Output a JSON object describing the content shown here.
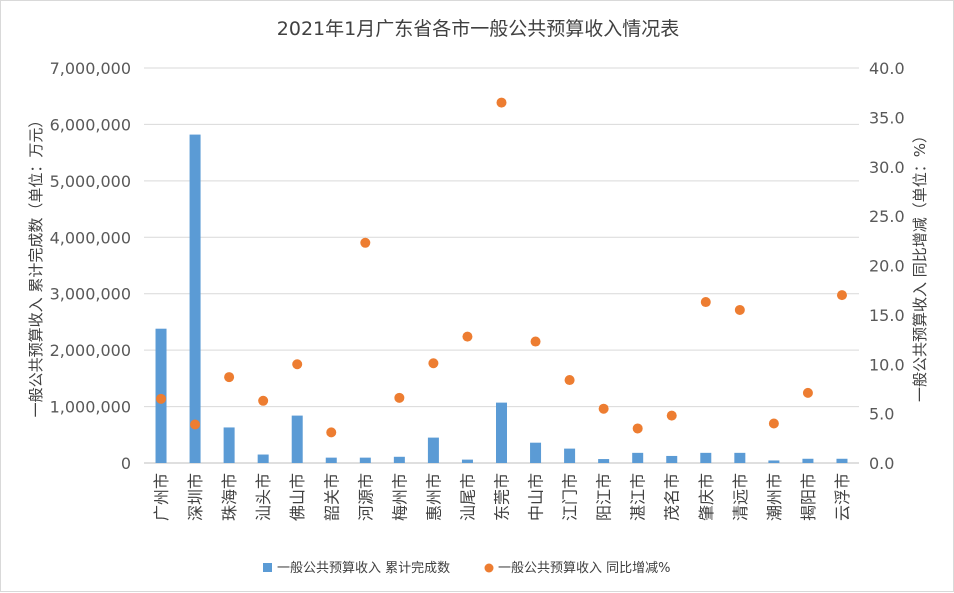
{
  "chart_data": {
    "type": "bar",
    "title": "2021年1月广东省各市一般公共预算收入情况表",
    "categories": [
      "广州市",
      "深圳市",
      "珠海市",
      "汕头市",
      "佛山市",
      "韶关市",
      "河源市",
      "梅州市",
      "惠州市",
      "汕尾市",
      "东莞市",
      "中山市",
      "江门市",
      "阳江市",
      "湛江市",
      "茂名市",
      "肇庆市",
      "清远市",
      "潮州市",
      "揭阳市",
      "云浮市"
    ],
    "series": [
      {
        "name": "一般公共预算收入 累计完成数",
        "type": "bar",
        "axis": "left",
        "color": "#5b9bd5",
        "values": [
          2380000,
          5820000,
          630000,
          150000,
          840000,
          95000,
          95000,
          110000,
          450000,
          60000,
          1070000,
          360000,
          255000,
          70000,
          180000,
          125000,
          180000,
          180000,
          45000,
          75000,
          75000
        ]
      },
      {
        "name": "一般公共预算收入 同比增减%",
        "type": "scatter",
        "axis": "right",
        "color": "#ed7d31",
        "values": [
          6.5,
          3.9,
          8.7,
          6.3,
          10.0,
          3.1,
          22.3,
          6.6,
          10.1,
          12.8,
          36.5,
          12.3,
          8.4,
          5.5,
          3.5,
          4.8,
          16.3,
          15.5,
          4.0,
          7.1,
          17.0
        ]
      }
    ],
    "ylabel": "一般公共预算收入 累计完成数（单位：万元）",
    "y2label": "一般公共预算收入 同比增减（单位：%）",
    "ylim": [
      0,
      7000000
    ],
    "y2lim": [
      0,
      40
    ],
    "yticks": [
      "0",
      "1,000,000",
      "2,000,000",
      "3,000,000",
      "4,000,000",
      "5,000,000",
      "6,000,000",
      "7,000,000"
    ],
    "y2ticks": [
      "0.0",
      "5.0",
      "10.0",
      "15.0",
      "20.0",
      "25.0",
      "30.0",
      "35.0",
      "40.0"
    ],
    "grid": true,
    "legend": "bottom"
  }
}
